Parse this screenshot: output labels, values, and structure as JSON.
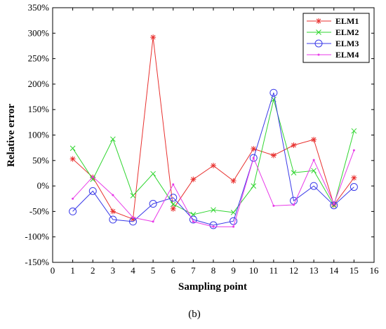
{
  "caption": "(b)",
  "chart_data": {
    "type": "line",
    "xlabel": "Sampling point",
    "ylabel": "Relative error",
    "xlim": [
      0,
      16
    ],
    "ylim": [
      -150,
      350
    ],
    "xticks": [
      0,
      1,
      2,
      3,
      4,
      5,
      6,
      7,
      8,
      9,
      10,
      11,
      12,
      13,
      14,
      15,
      16
    ],
    "yticks": [
      -150,
      -100,
      -50,
      0,
      50,
      100,
      150,
      200,
      250,
      300,
      350
    ],
    "y_tick_suffix": "%",
    "legend_position": "top-right",
    "grid": false,
    "x": [
      1,
      2,
      3,
      4,
      5,
      6,
      7,
      8,
      9,
      10,
      11,
      12,
      13,
      14,
      15
    ],
    "series": [
      {
        "name": "ELM1",
        "color": "#e8312f",
        "marker": "asterisk",
        "values": [
          53,
          17,
          -50,
          -65,
          292,
          -45,
          13,
          40,
          10,
          73,
          60,
          80,
          91,
          -37,
          16
        ]
      },
      {
        "name": "ELM2",
        "color": "#2fd52f",
        "marker": "x",
        "values": [
          74,
          13,
          92,
          -19,
          24,
          -36,
          -56,
          -47,
          -52,
          0,
          170,
          26,
          30,
          -38,
          108
        ]
      },
      {
        "name": "ELM3",
        "color": "#3a3ae8",
        "marker": "circle",
        "values": [
          -50,
          -10,
          -66,
          -70,
          -35,
          -23,
          -66,
          -77,
          -69,
          55,
          183,
          -29,
          0,
          -38,
          -2
        ]
      },
      {
        "name": "ELM4",
        "color": "#e83ae8",
        "marker": "dot",
        "values": [
          -25,
          18,
          -18,
          -62,
          -70,
          3,
          -70,
          -80,
          -80,
          55,
          -39,
          -37,
          51,
          -35,
          70
        ]
      }
    ]
  }
}
